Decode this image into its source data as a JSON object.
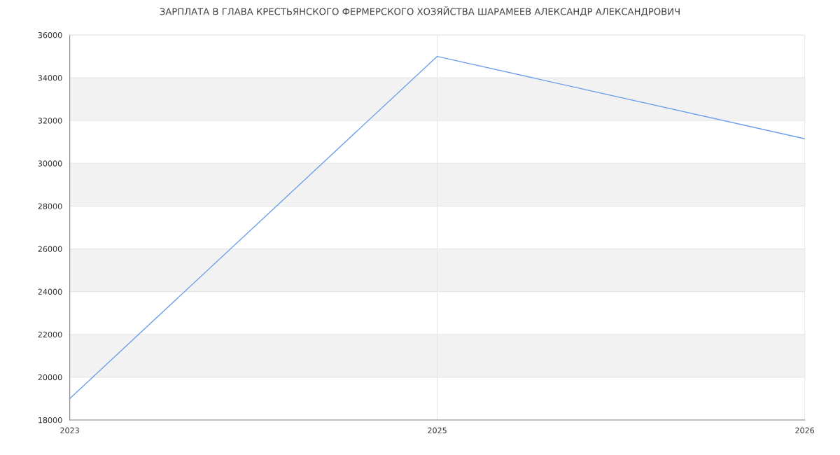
{
  "chart_data": {
    "type": "line",
    "title": "ЗАРПЛАТА В ГЛАВА КРЕСТЬЯНСКОГО ФЕРМЕРСКОГО ХОЗЯЙСТВА ШАРАМЕЕВ АЛЕКСАНДР АЛЕКСАНДРОВИЧ",
    "categories": [
      "2023",
      "2025",
      "2026"
    ],
    "series": [
      {
        "color": "#6d9eeb",
        "values": [
          19000,
          35000,
          31150
        ]
      }
    ],
    "ylim": [
      18000,
      36000
    ],
    "yticks": [
      18000,
      20000,
      22000,
      24000,
      26000,
      28000,
      30000,
      32000,
      34000,
      36000
    ],
    "bands": [
      {
        "axis": "y",
        "from": 20000,
        "to": 22000,
        "color": "#f2f2f2"
      },
      {
        "axis": "y",
        "from": 24000,
        "to": 26000,
        "color": "#f2f2f2"
      },
      {
        "axis": "y",
        "from": 28000,
        "to": 30000,
        "color": "#f2f2f2"
      },
      {
        "axis": "y",
        "from": 32000,
        "to": 34000,
        "color": "#f2f2f2"
      }
    ],
    "grid": true,
    "marker": "none",
    "line_style": "solid"
  }
}
